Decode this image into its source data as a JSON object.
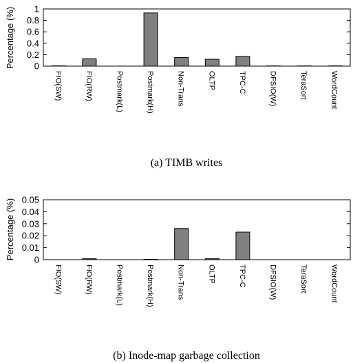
{
  "chart_data": [
    {
      "type": "bar",
      "caption": "(a) TIMB writes",
      "ylabel": "Percentage (%)",
      "ylim": [
        0,
        1
      ],
      "yticks": [
        "0",
        "0.2",
        "0.4",
        "0.6",
        "0.8",
        "1"
      ],
      "categories": [
        "FIO(SW)",
        "FIO(RW)",
        "Postmark(L)",
        "Postmark(H)",
        "Non-Trans",
        "OLTP",
        "TPC-C",
        "DFSIO(W)",
        "TeraSort",
        "WordCount"
      ],
      "values": [
        0.005,
        0.13,
        0,
        0.93,
        0.15,
        0.12,
        0.17,
        0.004,
        0.004,
        0.005
      ],
      "bar_color": "#808080",
      "grid": false
    },
    {
      "type": "bar",
      "caption": "(b) Inode-map garbage collection",
      "ylabel": "Percentage (%)",
      "ylim": [
        0,
        0.05
      ],
      "yticks": [
        "0",
        "0.01",
        "0.02",
        "0.03",
        "0.04",
        "0.05"
      ],
      "categories": [
        "FIO(SW)",
        "FIO(RW)",
        "Postmark(L)",
        "Postmark(H)",
        "Non-Trans",
        "OLTP",
        "TPC-C",
        "DFSIO(W)",
        "TeraSort",
        "WordCount"
      ],
      "values": [
        0,
        0.0008,
        0,
        0.0003,
        0.026,
        0.0008,
        0.023,
        0,
        0,
        0
      ],
      "bar_color": "#808080",
      "grid": false
    }
  ]
}
